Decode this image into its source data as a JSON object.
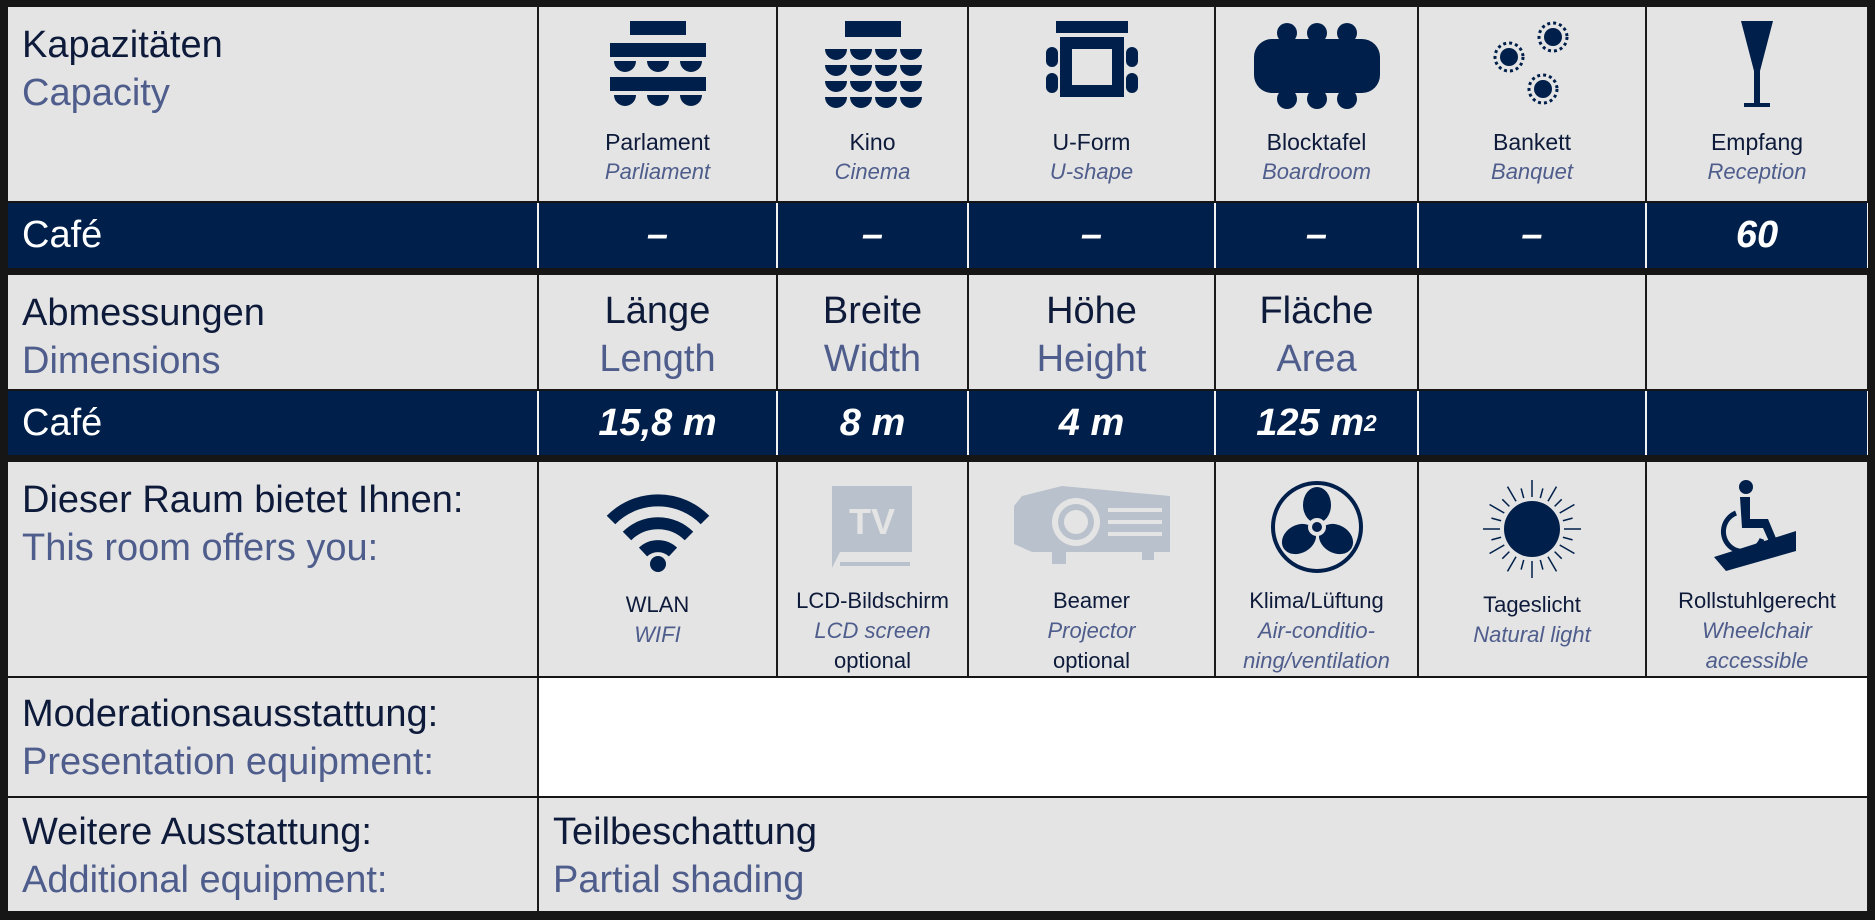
{
  "capacity": {
    "label_de": "Kapazitäten",
    "label_en": "Capacity",
    "columns": [
      {
        "de": "Parlament",
        "en": "Parliament",
        "icon": "parliament-seating-icon"
      },
      {
        "de": "Kino",
        "en": "Cinema",
        "icon": "cinema-seating-icon"
      },
      {
        "de": "U-Form",
        "en": "U-shape",
        "icon": "u-shape-seating-icon"
      },
      {
        "de": "Blocktafel",
        "en": "Boardroom",
        "icon": "boardroom-seating-icon"
      },
      {
        "de": "Bankett",
        "en": "Banquet",
        "icon": "banquet-seating-icon"
      },
      {
        "de": "Empfang",
        "en": "Reception",
        "icon": "reception-glass-icon"
      }
    ],
    "room": "Café",
    "values": [
      "–",
      "–",
      "–",
      "–",
      "–",
      "60"
    ]
  },
  "dimensions": {
    "label_de": "Abmessungen",
    "label_en": "Dimensions",
    "columns": [
      {
        "de": "Länge",
        "en": "Length"
      },
      {
        "de": "Breite",
        "en": "Width"
      },
      {
        "de": "Höhe",
        "en": "Height"
      },
      {
        "de": "Fläche",
        "en": "Area"
      }
    ],
    "room": "Café",
    "values": [
      "15,8 m",
      "8 m",
      "4 m",
      "125 m"
    ],
    "area_unit_sup": "2"
  },
  "features": {
    "label_de": "Dieser Raum bietet Ihnen:",
    "label_en": "This room offers you:",
    "items": [
      {
        "de": "WLAN",
        "en": "WIFI",
        "icon": "wifi-icon",
        "available": true
      },
      {
        "de": "LCD-Bildschirm",
        "en": "LCD screen",
        "note": "optional",
        "icon": "tv-icon",
        "available": false
      },
      {
        "de": "Beamer",
        "en": "Projector",
        "note": "optional",
        "icon": "projector-icon",
        "available": false
      },
      {
        "de": "Klima/Lüftung",
        "en": "Air-conditio-",
        "en2": "ning/ventilation",
        "icon": "fan-icon",
        "available": true
      },
      {
        "de": "Tageslicht",
        "en": "Natural light",
        "icon": "sun-icon",
        "available": true
      },
      {
        "de": "Rollstuhlgerecht",
        "en": "Wheelchair",
        "en2": "accessible",
        "icon": "wheelchair-icon",
        "available": true
      }
    ]
  },
  "presentation": {
    "label_de": "Moderationsausstattung:",
    "label_en": "Presentation equipment:",
    "value": ""
  },
  "additional": {
    "label_de": "Weitere Ausstattung:",
    "label_en": "Additional equipment:",
    "value_de": "Teilbeschattung",
    "value_en": "Partial shading"
  },
  "colors": {
    "navy": "#001f4a",
    "accent_text": "#4e5d8c",
    "cell_bg": "#e4e4e4",
    "unavailable_icon": "#b9c1cc"
  }
}
